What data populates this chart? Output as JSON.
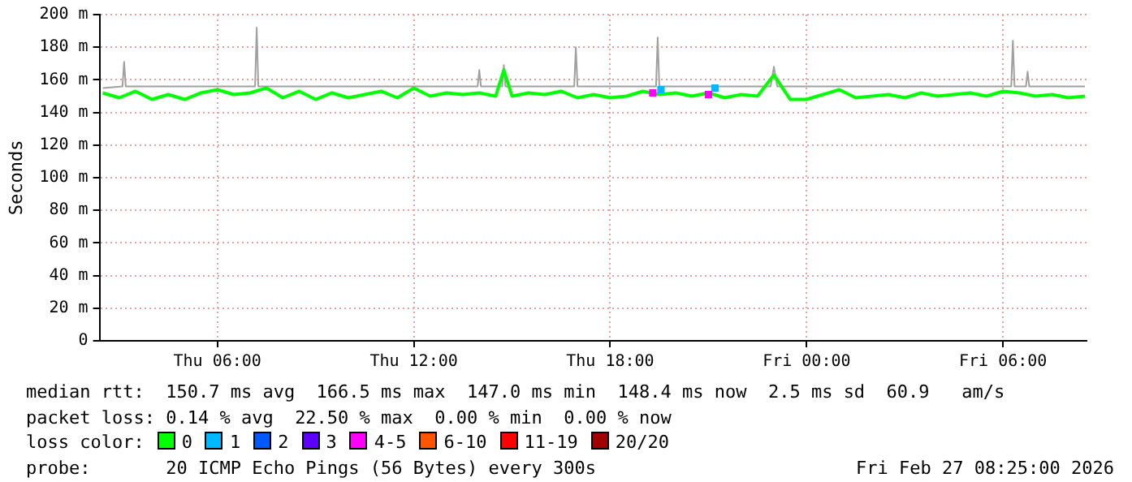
{
  "chart_data": {
    "type": "line",
    "ylabel": "Seconds",
    "xlim": [
      "2026-02-26T02:24",
      "2026-02-27T08:33"
    ],
    "xticks": [
      {
        "value": "2026-02-26T06:00",
        "label": "Thu 06:00"
      },
      {
        "value": "2026-02-26T12:00",
        "label": "Thu 12:00"
      },
      {
        "value": "2026-02-26T18:00",
        "label": "Thu 18:00"
      },
      {
        "value": "2026-02-27T00:00",
        "label": "Fri 00:00"
      },
      {
        "value": "2026-02-27T06:00",
        "label": "Fri 06:00"
      }
    ],
    "ylim": [
      0,
      200
    ],
    "yticks": [
      0,
      {
        "value": 20,
        "label": "20 m"
      },
      {
        "value": 40,
        "label": "40 m"
      },
      {
        "value": 60,
        "label": "60 m"
      },
      {
        "value": 80,
        "label": "80 m"
      },
      {
        "value": 100,
        "label": "100 m"
      },
      {
        "value": 120,
        "label": "120 m"
      },
      {
        "value": 140,
        "label": "140 m"
      },
      {
        "value": 160,
        "label": "160 m"
      },
      {
        "value": 180,
        "label": "180 m"
      },
      {
        "value": 200,
        "label": "200 m"
      }
    ],
    "grid": true,
    "legend": "bottom",
    "marker": "none",
    "line_style": "solid",
    "series": [
      {
        "color": "#a0a0a0",
        "x": [
          "2026-02-26T02:30",
          "2026-02-26T03:06",
          "2026-02-26T03:09",
          "2026-02-26T03:12",
          "2026-02-26T05:00",
          "2026-02-26T07:09",
          "2026-02-26T07:12",
          "2026-02-26T07:15",
          "2026-02-26T09:00",
          "2026-02-26T13:57",
          "2026-02-26T14:00",
          "2026-02-26T14:03",
          "2026-02-26T14:42",
          "2026-02-26T14:45",
          "2026-02-26T14:48",
          "2026-02-26T16:54",
          "2026-02-26T16:57",
          "2026-02-26T17:00",
          "2026-02-26T19:24",
          "2026-02-26T19:27",
          "2026-02-26T19:30",
          "2026-02-26T22:54",
          "2026-02-26T23:00",
          "2026-02-26T23:06",
          "2026-02-27T06:15",
          "2026-02-27T06:18",
          "2026-02-27T06:21",
          "2026-02-27T06:42",
          "2026-02-27T06:45",
          "2026-02-27T06:48",
          "2026-02-27T08:30"
        ],
        "values": [
          155,
          156,
          171,
          156,
          156,
          156,
          192,
          156,
          156,
          156,
          166,
          156,
          156,
          169,
          156,
          156,
          180,
          156,
          156,
          186,
          156,
          156,
          168,
          156,
          156,
          184,
          156,
          156,
          165,
          156,
          156
        ]
      },
      {
        "name": "0",
        "color": "#00ff00",
        "x": [
          "2026-02-26T02:30",
          "2026-02-26T03:00",
          "2026-02-26T03:30",
          "2026-02-26T04:00",
          "2026-02-26T04:30",
          "2026-02-26T05:00",
          "2026-02-26T05:30",
          "2026-02-26T06:00",
          "2026-02-26T06:30",
          "2026-02-26T07:00",
          "2026-02-26T07:30",
          "2026-02-26T08:00",
          "2026-02-26T08:30",
          "2026-02-26T09:00",
          "2026-02-26T09:30",
          "2026-02-26T10:00",
          "2026-02-26T10:30",
          "2026-02-26T11:00",
          "2026-02-26T11:30",
          "2026-02-26T12:00",
          "2026-02-26T12:30",
          "2026-02-26T13:00",
          "2026-02-26T13:30",
          "2026-02-26T14:00",
          "2026-02-26T14:30",
          "2026-02-26T14:45",
          "2026-02-26T15:00",
          "2026-02-26T15:30",
          "2026-02-26T16:00",
          "2026-02-26T16:30",
          "2026-02-26T17:00",
          "2026-02-26T17:30",
          "2026-02-26T18:00",
          "2026-02-26T18:30",
          "2026-02-26T19:00",
          "2026-02-26T19:30",
          "2026-02-26T20:00",
          "2026-02-26T20:30",
          "2026-02-26T21:00",
          "2026-02-26T21:30",
          "2026-02-26T22:00",
          "2026-02-26T22:30",
          "2026-02-26T23:00",
          "2026-02-26T23:30",
          "2026-02-27T00:00",
          "2026-02-27T00:30",
          "2026-02-27T01:00",
          "2026-02-27T01:30",
          "2026-02-27T02:00",
          "2026-02-27T02:30",
          "2026-02-27T03:00",
          "2026-02-27T03:30",
          "2026-02-27T04:00",
          "2026-02-27T04:30",
          "2026-02-27T05:00",
          "2026-02-27T05:30",
          "2026-02-27T06:00",
          "2026-02-27T06:30",
          "2026-02-27T07:00",
          "2026-02-27T07:30",
          "2026-02-27T08:00",
          "2026-02-27T08:30"
        ],
        "values": [
          152,
          149,
          153,
          148,
          151,
          148,
          152,
          154,
          151,
          152,
          155,
          149,
          153,
          148,
          152,
          149,
          151,
          153,
          149,
          155,
          150,
          152,
          151,
          152,
          150,
          166,
          150,
          152,
          151,
          153,
          149,
          151,
          149,
          150,
          153,
          151,
          152,
          150,
          152,
          149,
          151,
          150,
          163,
          148,
          148,
          151,
          154,
          149,
          150,
          151,
          149,
          152,
          150,
          151,
          152,
          150,
          153,
          152,
          150,
          151,
          149,
          150
        ]
      },
      {
        "name": "1",
        "type": "scatter",
        "marker": "square",
        "color": "#00b8ff",
        "x": [
          "2026-02-26T19:33",
          "2026-02-26T21:12"
        ],
        "values": [
          154,
          155
        ]
      },
      {
        "name": "2",
        "color": "#0059ff"
      },
      {
        "name": "3",
        "color": "#5e00ff"
      },
      {
        "name": "4-5",
        "type": "scatter",
        "marker": "square",
        "color": "#ff00ff",
        "x": [
          "2026-02-26T19:18",
          "2026-02-26T21:00"
        ],
        "values": [
          152,
          151
        ]
      },
      {
        "name": "6-10",
        "color": "#ff5500"
      },
      {
        "name": "11-19",
        "color": "#ff0000"
      },
      {
        "name": "20/20",
        "color": "#a10000"
      }
    ],
    "legend_title": "loss color:",
    "annotations": [
      "median rtt:  150.7 ms avg  166.5 ms max  147.0 ms min  148.4 ms now  2.5 ms sd  60.9   am/s",
      "packet loss: 0.14 % avg  22.50 % max  0.00 % min  0.00 % now",
      "probe:       20 ICMP Echo Pings (56 Bytes) every 300s",
      "Fri Feb 27 08:25:00 2026"
    ]
  }
}
